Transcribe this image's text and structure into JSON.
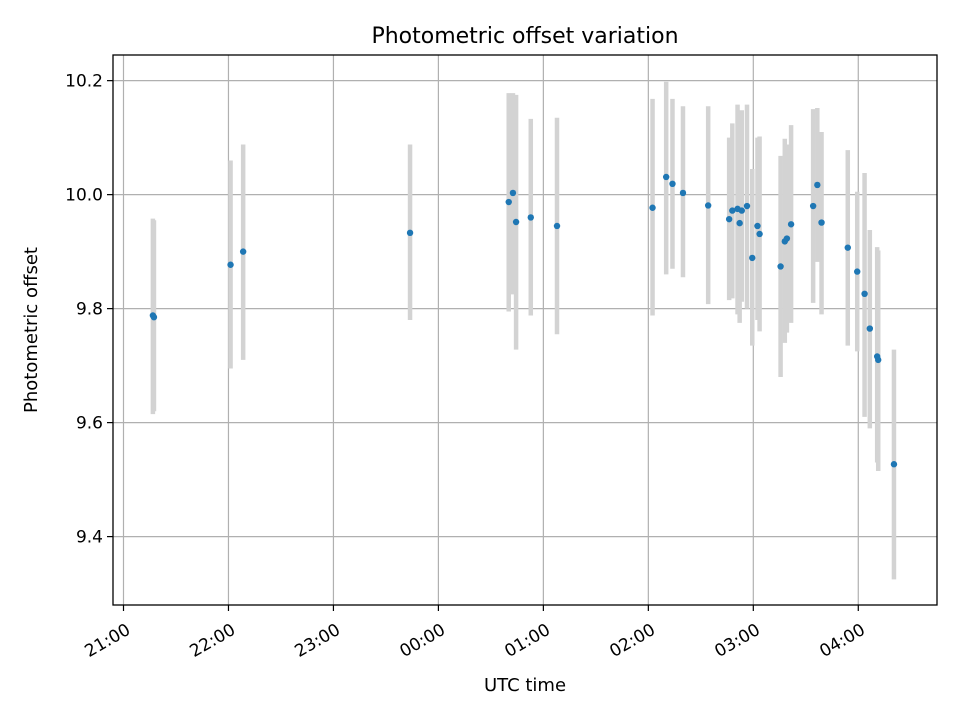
{
  "chart_data": {
    "type": "scatter",
    "title": "Photometric offset variation",
    "xlabel": "UTC time",
    "ylabel": "Photometric offset",
    "x_unit": "hours since 21:00 UTC",
    "xlim": [
      -0.1,
      7.75
    ],
    "ylim": [
      9.28,
      10.245
    ],
    "grid": true,
    "x_ticks": [
      {
        "value": 0,
        "label": "21:00"
      },
      {
        "value": 1,
        "label": "22:00"
      },
      {
        "value": 2,
        "label": "23:00"
      },
      {
        "value": 3,
        "label": "00:00"
      },
      {
        "value": 4,
        "label": "01:00"
      },
      {
        "value": 5,
        "label": "02:00"
      },
      {
        "value": 6,
        "label": "03:00"
      },
      {
        "value": 7,
        "label": "04:00"
      }
    ],
    "y_ticks": [
      {
        "value": 9.4,
        "label": "9.4"
      },
      {
        "value": 9.6,
        "label": "9.6"
      },
      {
        "value": 9.8,
        "label": "9.8"
      },
      {
        "value": 10.0,
        "label": "10.0"
      },
      {
        "value": 10.2,
        "label": "10.2"
      }
    ],
    "colors": {
      "marker": "#1f77b4",
      "errorbar": "#d3d3d3",
      "grid": "#b0b0b0"
    },
    "points": [
      {
        "x": 0.28,
        "y": 9.788,
        "yerr_low": 9.615,
        "yerr_high": 9.958
      },
      {
        "x": 0.29,
        "y": 9.785,
        "yerr_low": 9.62,
        "yerr_high": 9.955
      },
      {
        "x": 1.02,
        "y": 9.877,
        "yerr_low": 9.695,
        "yerr_high": 10.06
      },
      {
        "x": 1.14,
        "y": 9.9,
        "yerr_low": 9.71,
        "yerr_high": 10.088
      },
      {
        "x": 2.73,
        "y": 9.933,
        "yerr_low": 9.78,
        "yerr_high": 10.088
      },
      {
        "x": 3.67,
        "y": 9.987,
        "yerr_low": 9.795,
        "yerr_high": 10.178
      },
      {
        "x": 3.71,
        "y": 10.003,
        "yerr_low": 9.825,
        "yerr_high": 10.178
      },
      {
        "x": 3.74,
        "y": 9.952,
        "yerr_low": 9.728,
        "yerr_high": 10.175
      },
      {
        "x": 3.88,
        "y": 9.96,
        "yerr_low": 9.788,
        "yerr_high": 10.133
      },
      {
        "x": 4.13,
        "y": 9.945,
        "yerr_low": 9.755,
        "yerr_high": 10.135
      },
      {
        "x": 5.04,
        "y": 9.977,
        "yerr_low": 9.788,
        "yerr_high": 10.168
      },
      {
        "x": 5.17,
        "y": 10.031,
        "yerr_low": 9.86,
        "yerr_high": 10.198
      },
      {
        "x": 5.23,
        "y": 10.019,
        "yerr_low": 9.87,
        "yerr_high": 10.168
      },
      {
        "x": 5.33,
        "y": 10.003,
        "yerr_low": 9.855,
        "yerr_high": 10.155
      },
      {
        "x": 5.57,
        "y": 9.981,
        "yerr_low": 9.808,
        "yerr_high": 10.155
      },
      {
        "x": 5.77,
        "y": 9.957,
        "yerr_low": 9.815,
        "yerr_high": 10.1
      },
      {
        "x": 5.8,
        "y": 9.972,
        "yerr_low": 9.818,
        "yerr_high": 10.125
      },
      {
        "x": 5.85,
        "y": 9.975,
        "yerr_low": 9.79,
        "yerr_high": 10.158
      },
      {
        "x": 5.87,
        "y": 9.95,
        "yerr_low": 9.775,
        "yerr_high": 10.125
      },
      {
        "x": 5.89,
        "y": 9.972,
        "yerr_low": 9.812,
        "yerr_high": 10.148
      },
      {
        "x": 5.94,
        "y": 9.98,
        "yerr_low": 9.8,
        "yerr_high": 10.158
      },
      {
        "x": 5.99,
        "y": 9.889,
        "yerr_low": 9.735,
        "yerr_high": 10.045
      },
      {
        "x": 6.04,
        "y": 9.945,
        "yerr_low": 9.78,
        "yerr_high": 10.1
      },
      {
        "x": 6.06,
        "y": 9.931,
        "yerr_low": 9.76,
        "yerr_high": 10.102
      },
      {
        "x": 6.26,
        "y": 9.874,
        "yerr_low": 9.68,
        "yerr_high": 10.068
      },
      {
        "x": 6.3,
        "y": 9.918,
        "yerr_low": 9.74,
        "yerr_high": 10.098
      },
      {
        "x": 6.32,
        "y": 9.923,
        "yerr_low": 9.758,
        "yerr_high": 10.088
      },
      {
        "x": 6.36,
        "y": 9.948,
        "yerr_low": 9.775,
        "yerr_high": 10.122
      },
      {
        "x": 6.57,
        "y": 9.98,
        "yerr_low": 9.81,
        "yerr_high": 10.15
      },
      {
        "x": 6.61,
        "y": 10.017,
        "yerr_low": 9.882,
        "yerr_high": 10.152
      },
      {
        "x": 6.65,
        "y": 9.951,
        "yerr_low": 9.79,
        "yerr_high": 10.11
      },
      {
        "x": 6.9,
        "y": 9.907,
        "yerr_low": 9.735,
        "yerr_high": 10.078
      },
      {
        "x": 6.99,
        "y": 9.865,
        "yerr_low": 9.725,
        "yerr_high": 10.005
      },
      {
        "x": 7.06,
        "y": 9.826,
        "yerr_low": 9.61,
        "yerr_high": 10.038
      },
      {
        "x": 7.11,
        "y": 9.765,
        "yerr_low": 9.59,
        "yerr_high": 9.938
      },
      {
        "x": 7.18,
        "y": 9.716,
        "yerr_low": 9.53,
        "yerr_high": 9.908
      },
      {
        "x": 7.19,
        "y": 9.71,
        "yerr_low": 9.515,
        "yerr_high": 9.902
      },
      {
        "x": 7.34,
        "y": 9.527,
        "yerr_low": 9.325,
        "yerr_high": 9.728
      }
    ]
  }
}
